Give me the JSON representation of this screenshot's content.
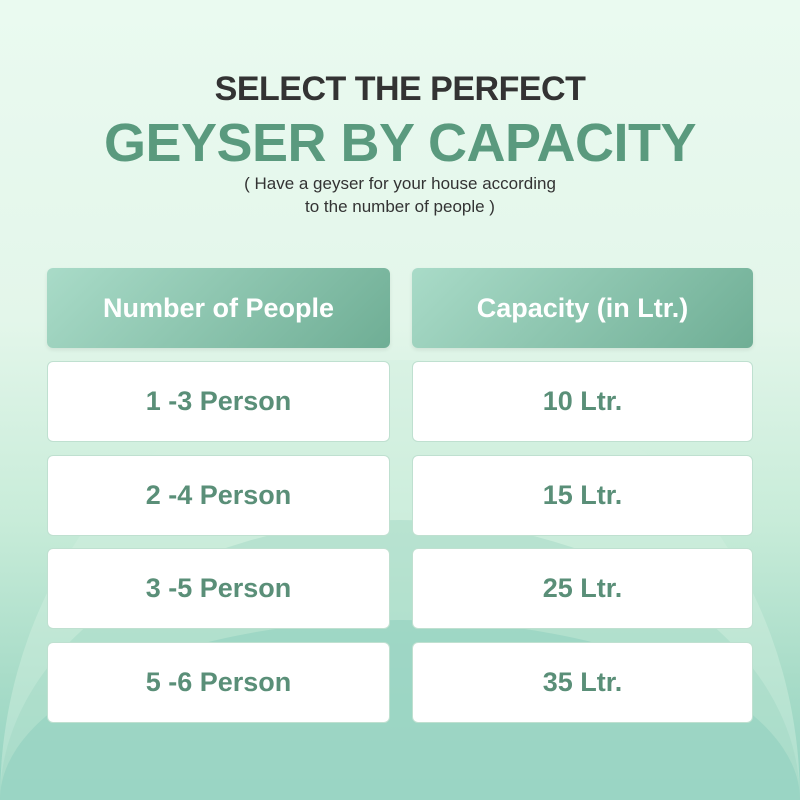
{
  "heading": {
    "line1": "SELECT THE PERFECT",
    "line2": "GEYSER BY CAPACITY",
    "sub1": "( Have a geyser for your house according",
    "sub2": "to the number of people )"
  },
  "table": {
    "headers": [
      "Number of People",
      "Capacity (in Ltr.)"
    ],
    "rows": [
      [
        "1 -3 Person",
        "10 Ltr."
      ],
      [
        "2 -4 Person",
        "15 Ltr."
      ],
      [
        "3 -5 Person",
        "25 Ltr."
      ],
      [
        "5 -6 Person",
        "35 Ltr."
      ]
    ]
  },
  "colors": {
    "accent": "#5a9a7e",
    "header_bg": "#8cc5ae",
    "title_dark": "#333333"
  }
}
